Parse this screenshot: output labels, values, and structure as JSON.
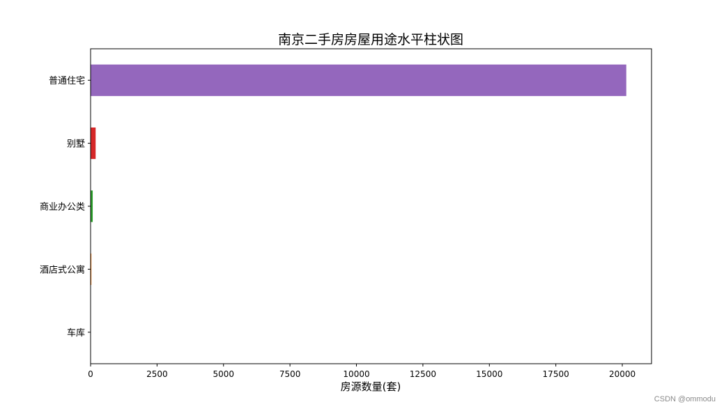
{
  "chart_data": {
    "type": "bar",
    "orientation": "horizontal",
    "title": "南京二手房房屋用途水平柱状图",
    "xlabel": "房源数量(套)",
    "ylabel": "",
    "categories": [
      "普通住宅",
      "别墅",
      "商业办公类",
      "酒店式公寓",
      "车库"
    ],
    "values": [
      20150,
      190,
      80,
      30,
      3
    ],
    "colors": [
      "#9467bd",
      "#d62728",
      "#2ca02c",
      "#ff7f0e",
      "#1f77b4"
    ],
    "xlim": [
      0,
      21100
    ],
    "xticks": [
      0,
      2500,
      5000,
      7500,
      10000,
      12500,
      15000,
      17500,
      20000
    ],
    "grid": false,
    "legend": "none"
  },
  "watermark": "CSDN @ommodu"
}
